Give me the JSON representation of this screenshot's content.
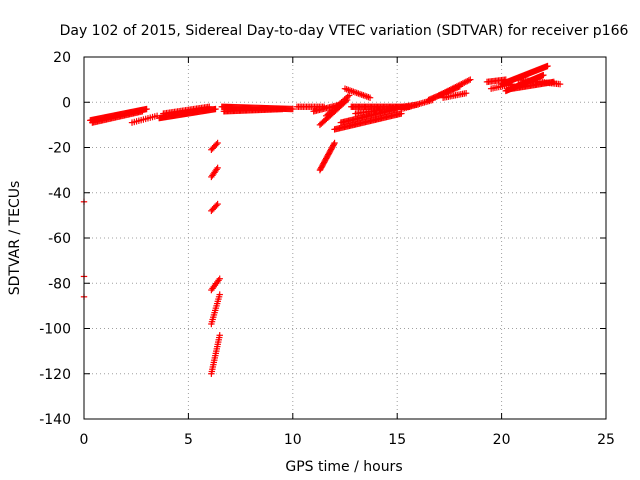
{
  "chart_data": {
    "type": "scatter",
    "title": "Day 102 of 2015, Sidereal Day-to-day VTEC variation (SDTVAR) for receiver p166",
    "xlabel": "GPS time / hours",
    "ylabel": "SDTVAR / TECUs",
    "xlim": [
      0,
      25
    ],
    "ylim": [
      -140,
      20
    ],
    "xticks": [
      0,
      5,
      10,
      15,
      20,
      25
    ],
    "yticks": [
      -140,
      -120,
      -100,
      -80,
      -60,
      -40,
      -20,
      0,
      20
    ],
    "grid": true,
    "marker": "plus",
    "color": "#ff0000",
    "segments": [
      {
        "x0": 0.3,
        "x1": 3.0,
        "y0": -8,
        "y1": -3,
        "n": 60
      },
      {
        "x0": 0.4,
        "x1": 2.8,
        "y0": -9,
        "y1": -4,
        "n": 40
      },
      {
        "x0": 2.3,
        "x1": 3.5,
        "y0": -9,
        "y1": -6,
        "n": 12
      },
      {
        "x0": 3.6,
        "x1": 6.3,
        "y0": -7,
        "y1": -3,
        "n": 60
      },
      {
        "x0": 3.8,
        "x1": 6.0,
        "y0": -5,
        "y1": -2,
        "n": 30
      },
      {
        "x0": 6.6,
        "x1": 10.0,
        "y0": -2,
        "y1": -3,
        "n": 70
      },
      {
        "x0": 6.7,
        "x1": 9.5,
        "y0": -4,
        "y1": -3,
        "n": 50
      },
      {
        "x0": 10.2,
        "x1": 11.5,
        "y0": -2,
        "y1": -2,
        "n": 18
      },
      {
        "x0": 11.0,
        "x1": 12.3,
        "y0": -4,
        "y1": -1,
        "n": 20
      },
      {
        "x0": 11.3,
        "x1": 12.6,
        "y0": -10,
        "y1": 1,
        "n": 22
      },
      {
        "x0": 11.6,
        "x1": 12.7,
        "y0": -6,
        "y1": 3,
        "n": 16
      },
      {
        "x0": 12.5,
        "x1": 13.7,
        "y0": 6,
        "y1": 2,
        "n": 16
      },
      {
        "x0": 12.8,
        "x1": 15.6,
        "y0": -2,
        "y1": -2,
        "n": 50
      },
      {
        "x0": 12.0,
        "x1": 15.2,
        "y0": -12,
        "y1": -5,
        "n": 55
      },
      {
        "x0": 12.3,
        "x1": 15.0,
        "y0": -9,
        "y1": -3,
        "n": 45
      },
      {
        "x0": 13.0,
        "x1": 16.0,
        "y0": -5,
        "y1": -1,
        "n": 40
      },
      {
        "x0": 15.2,
        "x1": 16.7,
        "y0": -3,
        "y1": 1,
        "n": 20
      },
      {
        "x0": 16.5,
        "x1": 18.0,
        "y0": 1,
        "y1": 7,
        "n": 26
      },
      {
        "x0": 17.0,
        "x1": 18.5,
        "y0": 3,
        "y1": 10,
        "n": 22
      },
      {
        "x0": 17.2,
        "x1": 18.3,
        "y0": 2,
        "y1": 4,
        "n": 14
      },
      {
        "x0": 19.3,
        "x1": 20.2,
        "y0": 9,
        "y1": 10,
        "n": 14
      },
      {
        "x0": 19.5,
        "x1": 20.5,
        "y0": 6,
        "y1": 8,
        "n": 12
      },
      {
        "x0": 20.0,
        "x1": 22.2,
        "y0": 8,
        "y1": 16,
        "n": 55
      },
      {
        "x0": 20.2,
        "x1": 22.0,
        "y0": 5,
        "y1": 12,
        "n": 45
      },
      {
        "x0": 20.5,
        "x1": 22.5,
        "y0": 6,
        "y1": 9,
        "n": 35
      },
      {
        "x0": 20.8,
        "x1": 22.8,
        "y0": 10,
        "y1": 8,
        "n": 25
      },
      {
        "x0": 11.3,
        "x1": 12.0,
        "y0": -30,
        "y1": -18,
        "n": 22
      },
      {
        "x0": 6.1,
        "x1": 6.4,
        "y0": -21,
        "y1": -18,
        "n": 6
      },
      {
        "x0": 6.1,
        "x1": 6.4,
        "y0": -33,
        "y1": -29,
        "n": 7
      },
      {
        "x0": 6.1,
        "x1": 6.4,
        "y0": -48,
        "y1": -45,
        "n": 6
      },
      {
        "x0": 6.1,
        "x1": 6.5,
        "y0": -83,
        "y1": -78,
        "n": 8
      },
      {
        "x0": 6.1,
        "x1": 6.5,
        "y0": -98,
        "y1": -85,
        "n": 14
      },
      {
        "x0": 6.1,
        "x1": 6.5,
        "y0": -120,
        "y1": -103,
        "n": 18
      },
      {
        "x0": 0.0,
        "x1": 0.0,
        "y0": -44,
        "y1": -44,
        "n": 1
      },
      {
        "x0": 0.0,
        "x1": 0.0,
        "y0": -77,
        "y1": -77,
        "n": 1
      },
      {
        "x0": 0.0,
        "x1": 0.0,
        "y0": -86,
        "y1": -86,
        "n": 1
      }
    ]
  }
}
